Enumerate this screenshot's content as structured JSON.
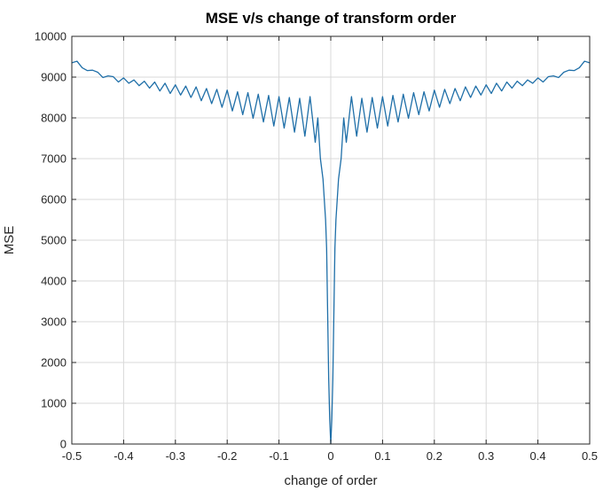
{
  "chart_data": {
    "type": "line",
    "title": "MSE v/s change of transform order",
    "xlabel": "change of order",
    "ylabel": "MSE",
    "xlim": [
      -0.5,
      0.5
    ],
    "ylim": [
      0,
      10000
    ],
    "x_ticks": [
      -0.5,
      -0.4,
      -0.3,
      -0.2,
      -0.1,
      0,
      0.1,
      0.2,
      0.3,
      0.4,
      0.5
    ],
    "x_tick_labels": [
      "-0.5",
      "-0.4",
      "-0.3",
      "-0.2",
      "-0.1",
      "0",
      "0.1",
      "0.2",
      "0.3",
      "0.4",
      "0.5"
    ],
    "y_ticks": [
      0,
      1000,
      2000,
      3000,
      4000,
      5000,
      6000,
      7000,
      8000,
      9000,
      10000
    ],
    "y_tick_labels": [
      "0",
      "1000",
      "2000",
      "3000",
      "4000",
      "5000",
      "6000",
      "7000",
      "8000",
      "9000",
      "10000"
    ],
    "grid": true,
    "series": [
      {
        "color": "#1f6fa8",
        "x": [
          -0.5,
          -0.49,
          -0.48,
          -0.47,
          -0.46,
          -0.45,
          -0.44,
          -0.43,
          -0.42,
          -0.41,
          -0.4,
          -0.39,
          -0.38,
          -0.37,
          -0.36,
          -0.35,
          -0.34,
          -0.33,
          -0.32,
          -0.31,
          -0.3,
          -0.29,
          -0.28,
          -0.27,
          -0.26,
          -0.25,
          -0.24,
          -0.23,
          -0.22,
          -0.21,
          -0.2,
          -0.19,
          -0.18,
          -0.17,
          -0.16,
          -0.15,
          -0.14,
          -0.13,
          -0.12,
          -0.11,
          -0.1,
          -0.09,
          -0.08,
          -0.07,
          -0.06,
          -0.05,
          -0.04,
          -0.03,
          -0.025,
          -0.02,
          -0.015,
          -0.01,
          -0.008,
          -0.006,
          -0.004,
          -0.002,
          0,
          0.002,
          0.004,
          0.006,
          0.008,
          0.01,
          0.015,
          0.02,
          0.025,
          0.03,
          0.04,
          0.05,
          0.06,
          0.07,
          0.08,
          0.09,
          0.1,
          0.11,
          0.12,
          0.13,
          0.14,
          0.15,
          0.16,
          0.17,
          0.18,
          0.19,
          0.2,
          0.21,
          0.22,
          0.23,
          0.24,
          0.25,
          0.26,
          0.27,
          0.28,
          0.29,
          0.3,
          0.31,
          0.32,
          0.33,
          0.34,
          0.35,
          0.36,
          0.37,
          0.38,
          0.39,
          0.4,
          0.41,
          0.42,
          0.43,
          0.44,
          0.45,
          0.46,
          0.47,
          0.48,
          0.49,
          0.5
        ],
        "y": [
          9350,
          9390,
          9230,
          9160,
          9170,
          9120,
          8990,
          9030,
          9010,
          8880,
          8980,
          8850,
          8930,
          8790,
          8900,
          8730,
          8880,
          8660,
          8850,
          8600,
          8810,
          8560,
          8780,
          8500,
          8760,
          8420,
          8720,
          8350,
          8700,
          8260,
          8680,
          8170,
          8640,
          8080,
          8620,
          7990,
          8580,
          7900,
          8550,
          7800,
          8520,
          7750,
          8500,
          7650,
          8480,
          7550,
          8520,
          7400,
          8000,
          7000,
          6500,
          5500,
          4800,
          3200,
          1600,
          600,
          0,
          600,
          1600,
          3200,
          4800,
          5500,
          6500,
          7000,
          8000,
          7400,
          8520,
          7550,
          8480,
          7650,
          8500,
          7750,
          8520,
          7800,
          8550,
          7900,
          8580,
          7990,
          8620,
          8080,
          8640,
          8170,
          8680,
          8260,
          8700,
          8350,
          8720,
          8420,
          8760,
          8500,
          8780,
          8560,
          8810,
          8600,
          8850,
          8660,
          8880,
          8730,
          8900,
          8790,
          8930,
          8850,
          8980,
          8880,
          9010,
          9030,
          8990,
          9120,
          9170,
          9160,
          9230,
          9390,
          9350
        ]
      }
    ]
  }
}
